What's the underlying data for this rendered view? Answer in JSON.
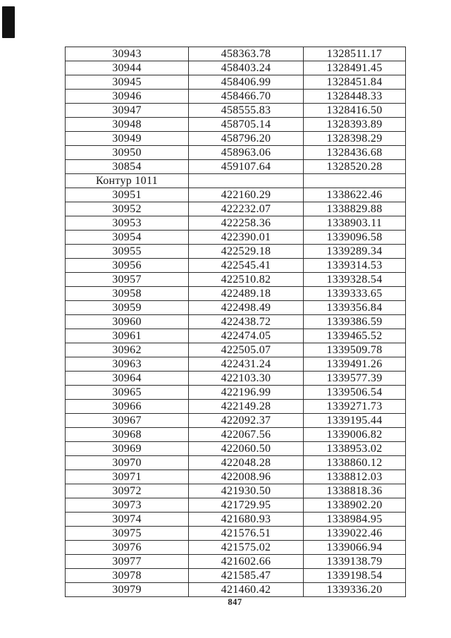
{
  "page": {
    "number": "847",
    "background": "#ffffff",
    "text_color": "#141414",
    "border_color": "#2c2c2c"
  },
  "section_label": "Контур 1011",
  "table": {
    "rows": [
      [
        "30943",
        "458363.78",
        "1328511.17"
      ],
      [
        "30944",
        "458403.24",
        "1328491.45"
      ],
      [
        "30945",
        "458406.99",
        "1328451.84"
      ],
      [
        "30946",
        "458466.70",
        "1328448.33"
      ],
      [
        "30947",
        "458555.83",
        "1328416.50"
      ],
      [
        "30948",
        "458705.14",
        "1328393.89"
      ],
      [
        "30949",
        "458796.20",
        "1328398.29"
      ],
      [
        "30950",
        "458963.06",
        "1328436.68"
      ],
      [
        "30854",
        "459107.64",
        "1328520.28"
      ],
      [
        "Контур 1011",
        "",
        ""
      ],
      [
        "30951",
        "422160.29",
        "1338622.46"
      ],
      [
        "30952",
        "422232.07",
        "1338829.88"
      ],
      [
        "30953",
        "422258.36",
        "1338903.11"
      ],
      [
        "30954",
        "422390.01",
        "1339096.58"
      ],
      [
        "30955",
        "422529.18",
        "1339289.34"
      ],
      [
        "30956",
        "422545.41",
        "1339314.53"
      ],
      [
        "30957",
        "422510.82",
        "1339328.54"
      ],
      [
        "30958",
        "422489.18",
        "1339333.65"
      ],
      [
        "30959",
        "422498.49",
        "1339356.84"
      ],
      [
        "30960",
        "422438.72",
        "1339386.59"
      ],
      [
        "30961",
        "422474.05",
        "1339465.52"
      ],
      [
        "30962",
        "422505.07",
        "1339509.78"
      ],
      [
        "30963",
        "422431.24",
        "1339491.26"
      ],
      [
        "30964",
        "422103.30",
        "1339577.39"
      ],
      [
        "30965",
        "422196.99",
        "1339506.54"
      ],
      [
        "30966",
        "422149.28",
        "1339271.73"
      ],
      [
        "30967",
        "422092.37",
        "1339195.44"
      ],
      [
        "30968",
        "422067.56",
        "1339006.82"
      ],
      [
        "30969",
        "422060.50",
        "1338953.02"
      ],
      [
        "30970",
        "422048.28",
        "1338860.12"
      ],
      [
        "30971",
        "422008.96",
        "1338812.03"
      ],
      [
        "30972",
        "421930.50",
        "1338818.36"
      ],
      [
        "30973",
        "421729.95",
        "1338902.20"
      ],
      [
        "30974",
        "421680.93",
        "1338984.95"
      ],
      [
        "30975",
        "421576.51",
        "1339022.46"
      ],
      [
        "30976",
        "421575.02",
        "1339066.94"
      ],
      [
        "30977",
        "421602.66",
        "1339138.79"
      ],
      [
        "30978",
        "421585.47",
        "1339198.54"
      ],
      [
        "30979",
        "421460.42",
        "1339336.20"
      ]
    ]
  }
}
